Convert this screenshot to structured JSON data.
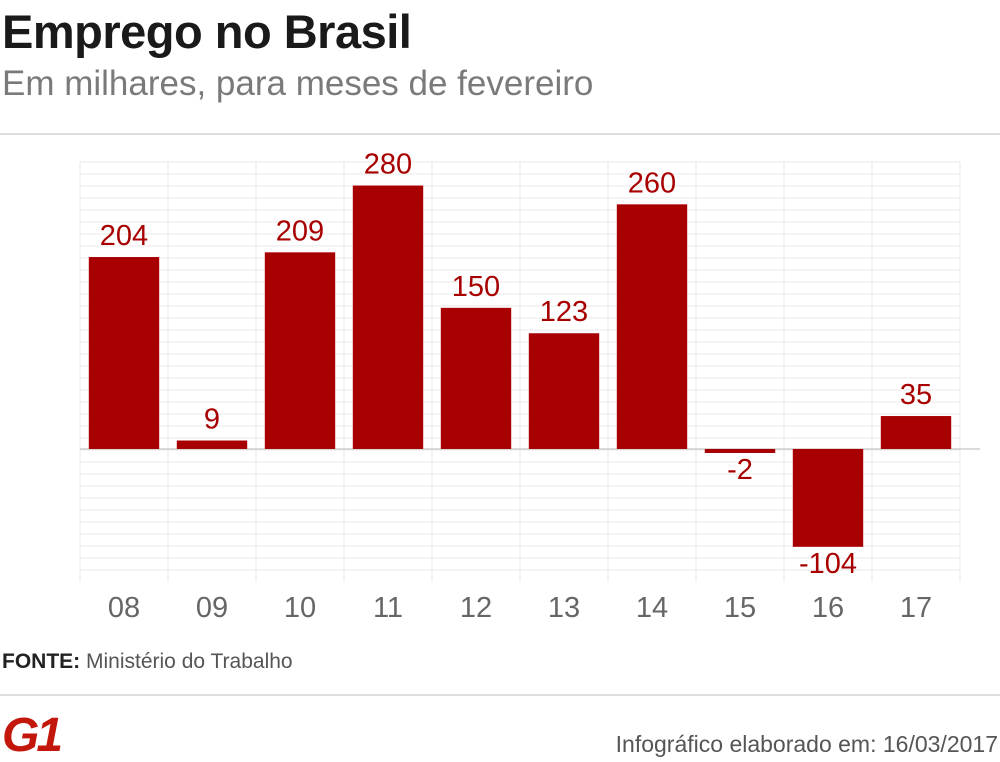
{
  "header": {
    "title": "Emprego no Brasil",
    "subtitle": "Em milhares, para meses de fevereiro"
  },
  "chart_data": {
    "type": "bar",
    "categories": [
      "08",
      "09",
      "10",
      "11",
      "12",
      "13",
      "14",
      "15",
      "16",
      "17"
    ],
    "values": [
      204,
      9,
      209,
      280,
      150,
      123,
      260,
      -2,
      -104,
      35
    ],
    "data_labels": [
      "204",
      "9",
      "209",
      "280",
      "150",
      "123",
      "260",
      "-2",
      "-104",
      "35"
    ],
    "title": "Emprego no Brasil",
    "subtitle": "Em milhares, para meses de fevereiro",
    "xlabel": "",
    "ylabel": "",
    "ylim": [
      -135,
      305
    ],
    "grid": true,
    "bar_color": "#a80000",
    "label_color": "#a80000"
  },
  "footer": {
    "source_label": "FONTE:",
    "source_text": "Ministério do Trabalho",
    "brand": "G1",
    "credit": "Infográfico elaborado em: 16/03/2017"
  },
  "colors": {
    "brand": "#c4170c",
    "grid": "#e8e8e8",
    "text_muted": "#7a7a7a"
  }
}
